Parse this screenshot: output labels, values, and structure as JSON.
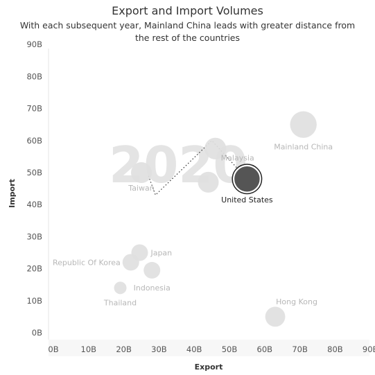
{
  "chart_data": {
    "type": "scatter",
    "title": "Export and Import Volumes",
    "subtitle": "With each subsequent year, Mainland China leads with greater distance from the rest of the countries",
    "xlabel": "Export",
    "ylabel": "Import",
    "xlim": [
      0,
      90
    ],
    "ylim": [
      0,
      90
    ],
    "x_ticks": [
      "0B",
      "10B",
      "20B",
      "30B",
      "40B",
      "50B",
      "60B",
      "70B",
      "80B",
      "90B"
    ],
    "y_ticks": [
      "0B",
      "10B",
      "20B",
      "30B",
      "40B",
      "50B",
      "60B",
      "70B",
      "80B",
      "90B"
    ],
    "year_watermark": "2020",
    "highlight": "United States",
    "colors": {
      "faded": "#e0e0e0",
      "highlight": "#555555",
      "highlight_ring": "#222222"
    },
    "points": [
      {
        "name": "Mainland China",
        "x": 71,
        "y": 65,
        "size": 3.2
      },
      {
        "name": "Malaysia",
        "x": 46,
        "y": 57.5,
        "size": 2.6
      },
      {
        "name": "United States",
        "x": 55,
        "y": 48,
        "size": 3.2
      },
      {
        "name": "Taiwan",
        "x": 25,
        "y": 50,
        "size": 2.5
      },
      {
        "name": "",
        "x": 44,
        "y": 47,
        "size": 2.5
      },
      {
        "name": "Japan",
        "x": 24.5,
        "y": 25,
        "size": 2.0
      },
      {
        "name": "Republic Of Korea",
        "x": 22,
        "y": 22,
        "size": 2.0
      },
      {
        "name": "Indonesia",
        "x": 28,
        "y": 19.5,
        "size": 2.0
      },
      {
        "name": "Thailand",
        "x": 19,
        "y": 14,
        "size": 1.5
      },
      {
        "name": "Hong Kong",
        "x": 63,
        "y": 5,
        "size": 2.4
      }
    ],
    "trail": [
      {
        "x": 55,
        "y": 48
      },
      {
        "x": 45,
        "y": 60
      },
      {
        "x": 29,
        "y": 43
      },
      {
        "x": 27,
        "y": 49
      }
    ]
  }
}
